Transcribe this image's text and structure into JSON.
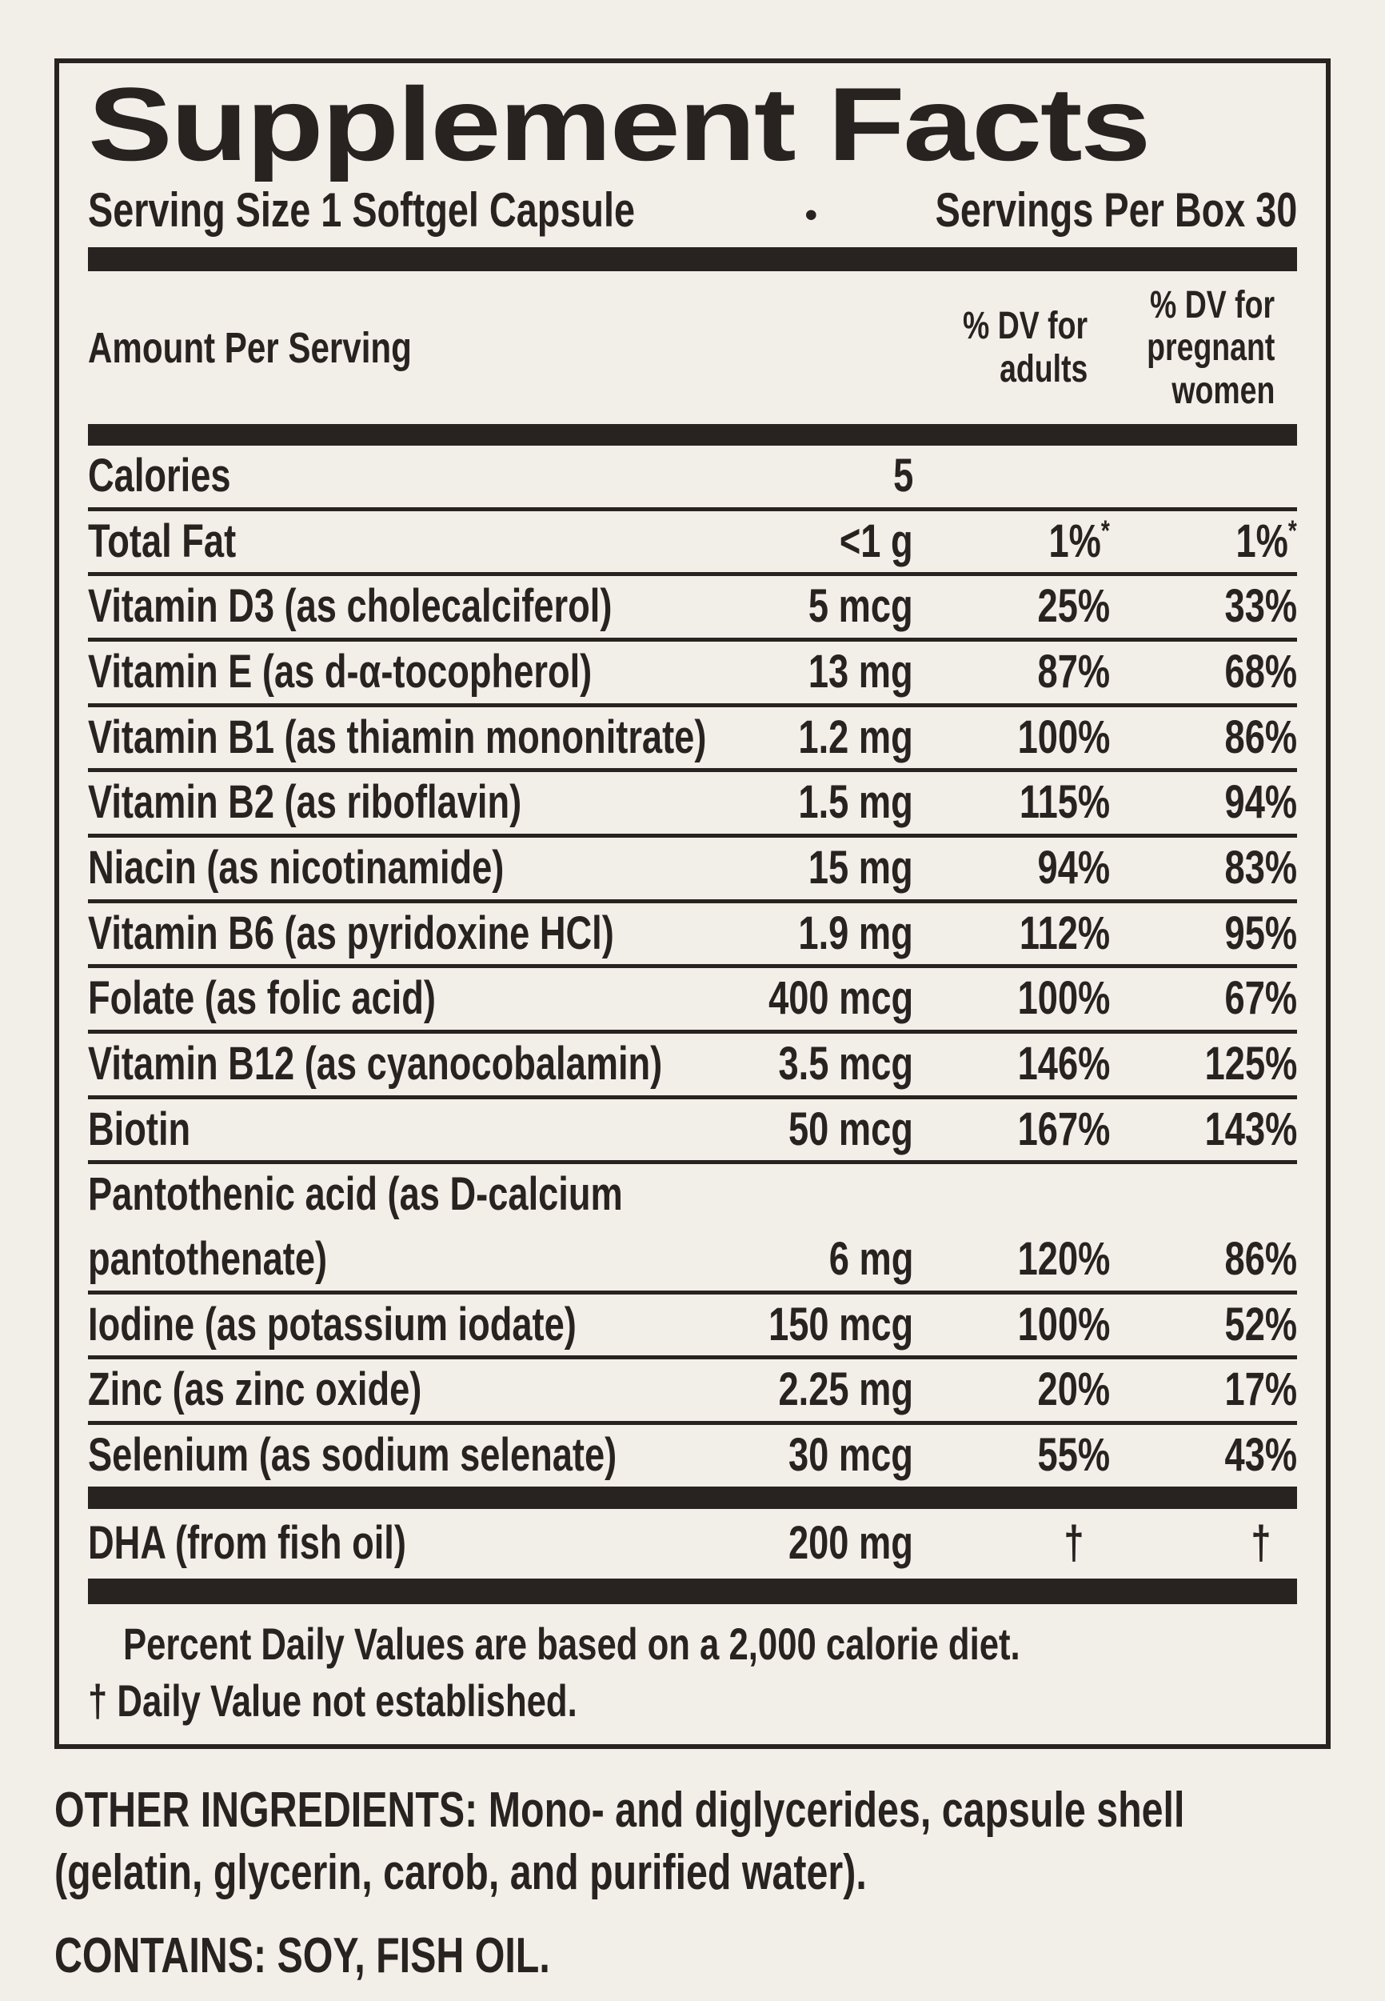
{
  "colors": {
    "background": "#f2eee8",
    "ink": "#282220"
  },
  "header": {
    "title": "Supplement Facts",
    "serving_size": "Serving Size 1 Softgel Capsule",
    "bullet": "•",
    "servings_per_box": "Servings Per Box 30"
  },
  "columns": {
    "amount": "Amount Per Serving",
    "adults_line1": "% DV for",
    "adults_line2": "adults",
    "pregnant_line1": "% DV for",
    "pregnant_line2": "pregnant",
    "pregnant_line3": "women"
  },
  "table": {
    "rows": [
      {
        "name": "Calories",
        "amount": "5",
        "adults": "",
        "pregnant": ""
      },
      {
        "name": "Total Fat",
        "amount": "<1 g",
        "adults": "1%",
        "pregnant": "1%",
        "sup": "*"
      },
      {
        "name": "Vitamin D3 (as cholecalciferol)",
        "amount": "5 mcg",
        "adults": "25%",
        "pregnant": "33%"
      },
      {
        "name": "Vitamin E (as d-α-tocopherol)",
        "amount": "13 mg",
        "adults": "87%",
        "pregnant": "68%"
      },
      {
        "name": "Vitamin B1 (as thiamin mononitrate)",
        "amount": "1.2 mg",
        "adults": "100%",
        "pregnant": "86%"
      },
      {
        "name": "Vitamin B2 (as riboflavin)",
        "amount": "1.5 mg",
        "adults": "115%",
        "pregnant": "94%"
      },
      {
        "name": "Niacin (as nicotinamide)",
        "amount": "15 mg",
        "adults": "94%",
        "pregnant": "83%"
      },
      {
        "name": "Vitamin B6 (as pyridoxine HCl)",
        "amount": "1.9 mg",
        "adults": "112%",
        "pregnant": "95%"
      },
      {
        "name": "Folate (as folic acid)",
        "amount": "400 mcg",
        "adults": "100%",
        "pregnant": "67%"
      },
      {
        "name": "Vitamin B12 (as cyanocobalamin)",
        "amount": "3.5 mcg",
        "adults": "146%",
        "pregnant": "125%"
      },
      {
        "name": "Biotin",
        "amount": "50 mcg",
        "adults": "167%",
        "pregnant": "143%"
      },
      {
        "name": "Pantothenic acid (as D-calcium",
        "name2": "pantothenate)",
        "amount": "6 mg",
        "adults": "120%",
        "pregnant": "86%"
      },
      {
        "name": "Iodine (as potassium iodate)",
        "amount": "150 mcg",
        "adults": "100%",
        "pregnant": "52%"
      },
      {
        "name": "Zinc (as zinc oxide)",
        "amount": "2.25 mg",
        "adults": "20%",
        "pregnant": "17%"
      },
      {
        "name": "Selenium (as sodium selenate)",
        "amount": "30 mcg",
        "adults": "55%",
        "pregnant": "43%"
      }
    ],
    "dha_row": {
      "name": "DHA (from fish oil)",
      "amount": "200 mg",
      "adults": "†",
      "pregnant": "†",
      "dagger": true
    }
  },
  "footnotes": {
    "percent_dv": "Percent Daily Values are based on a 2,000 calorie diet.",
    "dagger_note": "† Daily Value not established."
  },
  "other_ingredients": {
    "label": "OTHER INGREDIENTS:",
    "line1_rest": " Mono- and diglycerides, capsule shell",
    "line2": "(gelatin, glycerin, carob, and purified water)."
  },
  "contains": {
    "text": "CONTAINS: SOY, FISH OIL."
  }
}
